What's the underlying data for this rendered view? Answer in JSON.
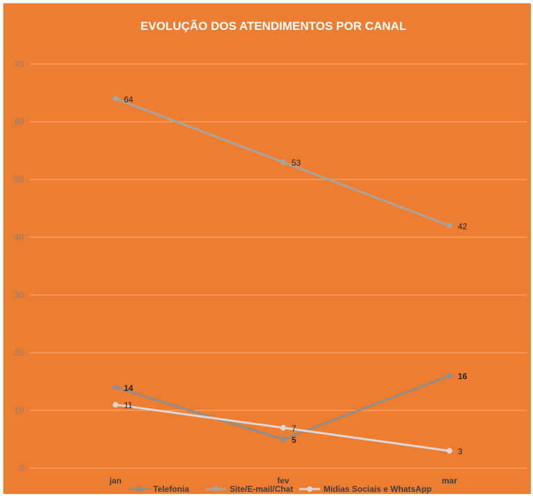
{
  "chart_data": {
    "type": "line",
    "title": "EVOLUÇÃO DOS ATENDIMENTOS POR CANAL",
    "categories": [
      "jan",
      "fev",
      "mar"
    ],
    "ylim": [
      0,
      70
    ],
    "yticks": [
      0,
      10,
      20,
      30,
      40,
      50,
      60,
      70
    ],
    "grid": true,
    "legend_position": "bottom",
    "background_color": "#ED7D31",
    "series": [
      {
        "name": "Telefonia",
        "values": [
          14,
          5,
          16
        ],
        "color": "#8E8E8E",
        "labels_bold": true
      },
      {
        "name": "Site/E-mail/Chat",
        "values": [
          64,
          53,
          42
        ],
        "color": "#A5A5A5",
        "labels_bold": false
      },
      {
        "name": "Midias Sociais e WhatsApp",
        "values": [
          11,
          7,
          3
        ],
        "color": "#D9D9D9",
        "labels_bold": false
      }
    ]
  }
}
